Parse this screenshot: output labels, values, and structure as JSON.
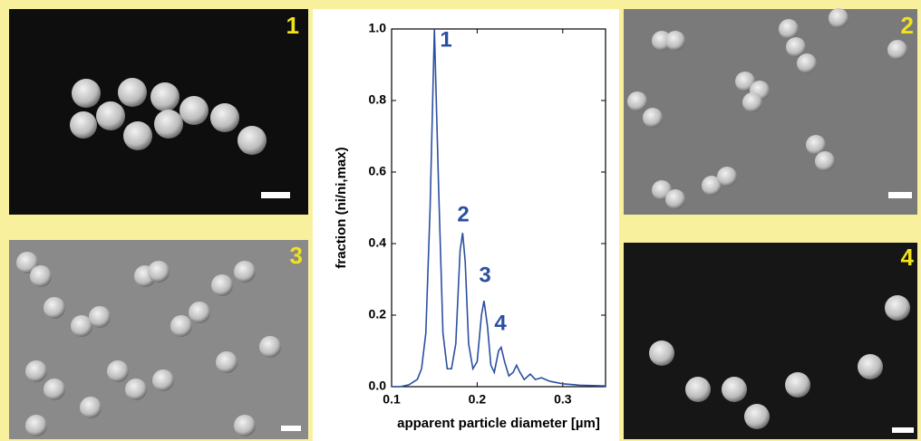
{
  "chart_data": {
    "type": "line",
    "x_label": "apparent particle diameter [µm]",
    "y_label": "fraction (ni/ni,max)",
    "annotations": [
      "1",
      "2",
      "3",
      "4"
    ],
    "color": "#2b4fa0",
    "x": [
      0.1,
      0.11,
      0.12,
      0.13,
      0.135,
      0.14,
      0.145,
      0.15,
      0.155,
      0.16,
      0.165,
      0.17,
      0.175,
      0.18,
      0.183,
      0.186,
      0.19,
      0.195,
      0.2,
      0.205,
      0.208,
      0.212,
      0.216,
      0.22,
      0.225,
      0.228,
      0.232,
      0.237,
      0.242,
      0.246,
      0.25,
      0.255,
      0.262,
      0.268,
      0.275,
      0.285,
      0.3,
      0.32,
      0.35
    ],
    "values": [
      0,
      0,
      0.005,
      0.02,
      0.05,
      0.15,
      0.5,
      1.0,
      0.55,
      0.15,
      0.05,
      0.05,
      0.12,
      0.38,
      0.43,
      0.35,
      0.12,
      0.05,
      0.07,
      0.2,
      0.24,
      0.17,
      0.06,
      0.04,
      0.1,
      0.11,
      0.07,
      0.03,
      0.04,
      0.06,
      0.04,
      0.02,
      0.035,
      0.02,
      0.025,
      0.015,
      0.008,
      0.004,
      0.002
    ],
    "xlim": [
      0.1,
      0.35
    ],
    "xticks": [
      0.1,
      0.2,
      0.3
    ],
    "ylim": [
      0,
      1.0
    ],
    "yticks": [
      {
        "value": 0,
        "label": "0.0"
      },
      {
        "value": 0.2,
        "label": "0.2"
      },
      {
        "value": 0.4,
        "label": "0.4"
      },
      {
        "value": 0.6,
        "label": "0.6"
      },
      {
        "value": 0.8,
        "label": "0.8"
      },
      {
        "value": 1.0,
        "label": "1.0"
      }
    ]
  },
  "panels": [
    {
      "label": "1"
    },
    {
      "label": "2"
    },
    {
      "label": "3"
    },
    {
      "label": "4"
    }
  ]
}
